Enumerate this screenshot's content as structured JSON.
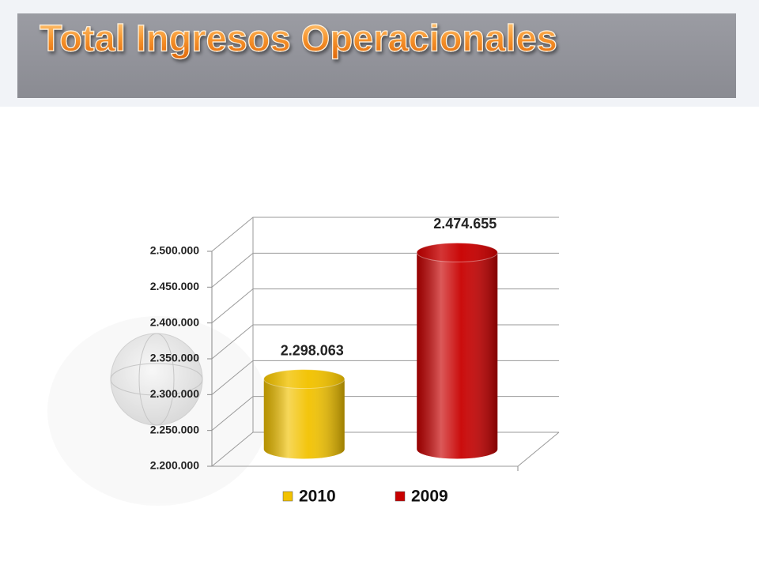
{
  "chart_data": {
    "type": "bar",
    "title": "Total Ingresos Operacionales",
    "categories": [
      null
    ],
    "series": [
      {
        "name": "2010",
        "color": "#f2c200",
        "values": [
          2298063
        ],
        "value_labels": [
          "2.298.063"
        ]
      },
      {
        "name": "2009",
        "color": "#c80000",
        "values": [
          2474655
        ],
        "value_labels": [
          "2.474.655"
        ]
      }
    ],
    "ylim": [
      2200000,
      2500000
    ],
    "yticks": [
      {
        "value": 2200000,
        "label": "2.200.000"
      },
      {
        "value": 2250000,
        "label": "2.250.000"
      },
      {
        "value": 2300000,
        "label": "2.300.000"
      },
      {
        "value": 2350000,
        "label": "2.350.000"
      },
      {
        "value": 2400000,
        "label": "2.400.000"
      },
      {
        "value": 2450000,
        "label": "2.450.000"
      },
      {
        "value": 2500000,
        "label": "2.500.000"
      }
    ],
    "grid": true,
    "legend": "bottom"
  }
}
